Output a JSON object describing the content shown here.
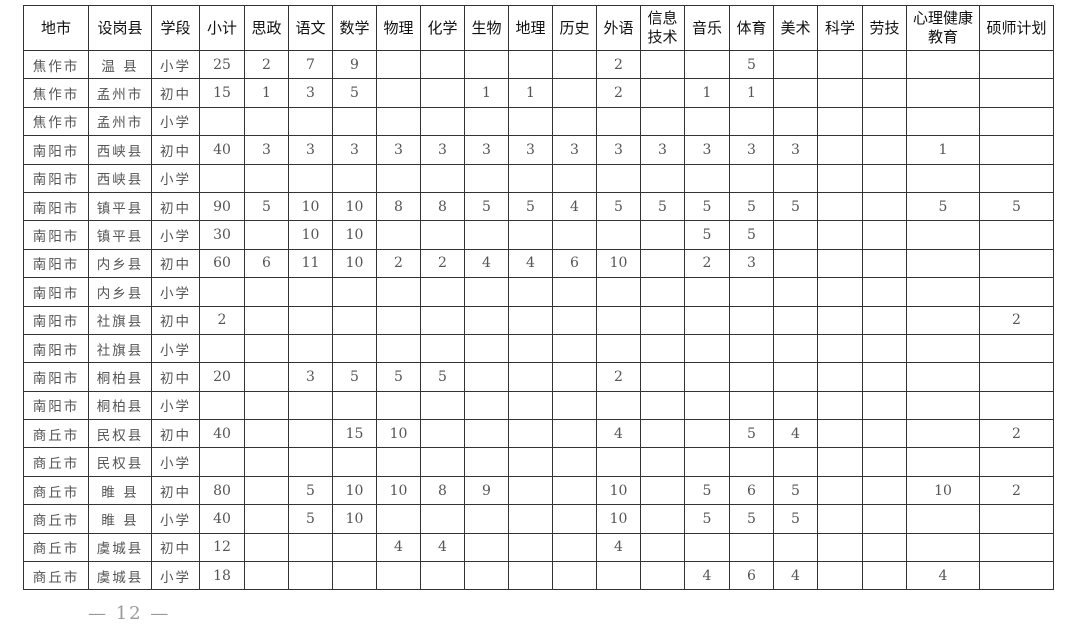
{
  "table": {
    "headers": [
      "地市",
      "设岗县",
      "学段",
      "小计",
      "思政",
      "语文",
      "数学",
      "物理",
      "化学",
      "生物",
      "地理",
      "历史",
      "外语",
      "信息技术",
      "音乐",
      "体育",
      "美术",
      "科学",
      "劳技",
      "心理健康教育",
      "硕师计划"
    ],
    "rows": [
      [
        "焦作市",
        "温 县",
        "小学",
        "25",
        "2",
        "7",
        "9",
        "",
        "",
        "",
        "",
        "",
        "2",
        "",
        "",
        "5",
        "",
        "",
        "",
        "",
        ""
      ],
      [
        "焦作市",
        "孟州市",
        "初中",
        "15",
        "1",
        "3",
        "5",
        "",
        "",
        "1",
        "1",
        "",
        "2",
        "",
        "1",
        "1",
        "",
        "",
        "",
        "",
        ""
      ],
      [
        "焦作市",
        "孟州市",
        "小学",
        "",
        "",
        "",
        "",
        "",
        "",
        "",
        "",
        "",
        "",
        "",
        "",
        "",
        "",
        "",
        "",
        "",
        ""
      ],
      [
        "南阳市",
        "西峡县",
        "初中",
        "40",
        "3",
        "3",
        "3",
        "3",
        "3",
        "3",
        "3",
        "3",
        "3",
        "3",
        "3",
        "3",
        "3",
        "",
        "",
        "1",
        ""
      ],
      [
        "南阳市",
        "西峡县",
        "小学",
        "",
        "",
        "",
        "",
        "",
        "",
        "",
        "",
        "",
        "",
        "",
        "",
        "",
        "",
        "",
        "",
        "",
        ""
      ],
      [
        "南阳市",
        "镇平县",
        "初中",
        "90",
        "5",
        "10",
        "10",
        "8",
        "8",
        "5",
        "5",
        "4",
        "5",
        "5",
        "5",
        "5",
        "5",
        "",
        "",
        "5",
        "5"
      ],
      [
        "南阳市",
        "镇平县",
        "小学",
        "30",
        "",
        "10",
        "10",
        "",
        "",
        "",
        "",
        "",
        "",
        "",
        "5",
        "5",
        "",
        "",
        "",
        "",
        ""
      ],
      [
        "南阳市",
        "内乡县",
        "初中",
        "60",
        "6",
        "11",
        "10",
        "2",
        "2",
        "4",
        "4",
        "6",
        "10",
        "",
        "2",
        "3",
        "",
        "",
        "",
        "",
        ""
      ],
      [
        "南阳市",
        "内乡县",
        "小学",
        "",
        "",
        "",
        "",
        "",
        "",
        "",
        "",
        "",
        "",
        "",
        "",
        "",
        "",
        "",
        "",
        "",
        ""
      ],
      [
        "南阳市",
        "社旗县",
        "初中",
        "2",
        "",
        "",
        "",
        "",
        "",
        "",
        "",
        "",
        "",
        "",
        "",
        "",
        "",
        "",
        "",
        "",
        "2"
      ],
      [
        "南阳市",
        "社旗县",
        "小学",
        "",
        "",
        "",
        "",
        "",
        "",
        "",
        "",
        "",
        "",
        "",
        "",
        "",
        "",
        "",
        "",
        "",
        ""
      ],
      [
        "南阳市",
        "桐柏县",
        "初中",
        "20",
        "",
        "3",
        "5",
        "5",
        "5",
        "",
        "",
        "",
        "2",
        "",
        "",
        "",
        "",
        "",
        "",
        "",
        ""
      ],
      [
        "南阳市",
        "桐柏县",
        "小学",
        "",
        "",
        "",
        "",
        "",
        "",
        "",
        "",
        "",
        "",
        "",
        "",
        "",
        "",
        "",
        "",
        "",
        ""
      ],
      [
        "商丘市",
        "民权县",
        "初中",
        "40",
        "",
        "",
        "15",
        "10",
        "",
        "",
        "",
        "",
        "4",
        "",
        "",
        "5",
        "4",
        "",
        "",
        "",
        "2"
      ],
      [
        "商丘市",
        "民权县",
        "小学",
        "",
        "",
        "",
        "",
        "",
        "",
        "",
        "",
        "",
        "",
        "",
        "",
        "",
        "",
        "",
        "",
        "",
        ""
      ],
      [
        "商丘市",
        "睢 县",
        "初中",
        "80",
        "",
        "5",
        "10",
        "10",
        "8",
        "9",
        "",
        "",
        "10",
        "",
        "5",
        "6",
        "5",
        "",
        "",
        "10",
        "2"
      ],
      [
        "商丘市",
        "睢 县",
        "小学",
        "40",
        "",
        "5",
        "10",
        "",
        "",
        "",
        "",
        "",
        "10",
        "",
        "5",
        "5",
        "5",
        "",
        "",
        "",
        ""
      ],
      [
        "商丘市",
        "虞城县",
        "初中",
        "12",
        "",
        "",
        "",
        "4",
        "4",
        "",
        "",
        "",
        "4",
        "",
        "",
        "",
        "",
        "",
        "",
        "",
        ""
      ],
      [
        "商丘市",
        "虞城县",
        "小学",
        "18",
        "",
        "",
        "",
        "",
        "",
        "",
        "",
        "",
        "",
        "",
        "4",
        "6",
        "4",
        "",
        "",
        "4",
        ""
      ]
    ]
  },
  "footer": {
    "page_number": "— 12 —"
  }
}
